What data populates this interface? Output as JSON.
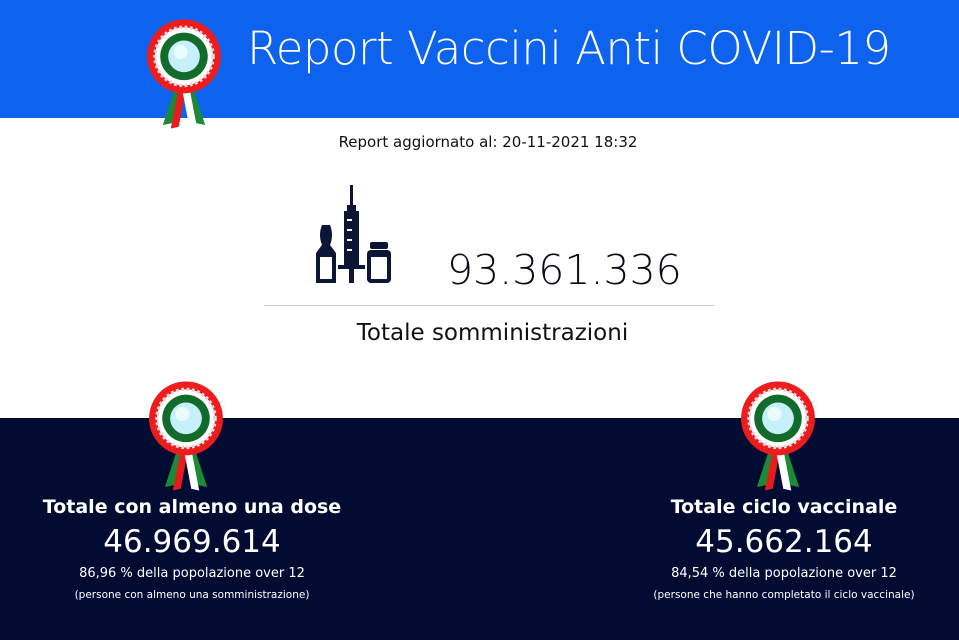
{
  "header": {
    "title": "Report Vaccini Anti COVID-19",
    "logo_icon": "italian-rosette-icon"
  },
  "updated": "Report aggiornato al: 20-11-2021 18:32",
  "total": {
    "value": "93.361.336",
    "label": "Totale somministrazioni",
    "icon": "vaccine-vials-syringe-icon"
  },
  "stats": [
    {
      "title": "Totale con almeno una dose",
      "value": "46.969.614",
      "percent": "86,96 % della popolazione over 12",
      "note": "(persone con almeno una somministrazione)"
    },
    {
      "title": "Totale ciclo vaccinale",
      "value": "45.662.164",
      "percent": "84,54 % della popolazione over 12",
      "note": "(persone che hanno completato il ciclo vaccinale)"
    }
  ],
  "colors": {
    "header": "#0d62ee",
    "dark": "#020c33",
    "red": "#ee1c1c",
    "green": "#126b2a",
    "icon": "#0b1535"
  }
}
